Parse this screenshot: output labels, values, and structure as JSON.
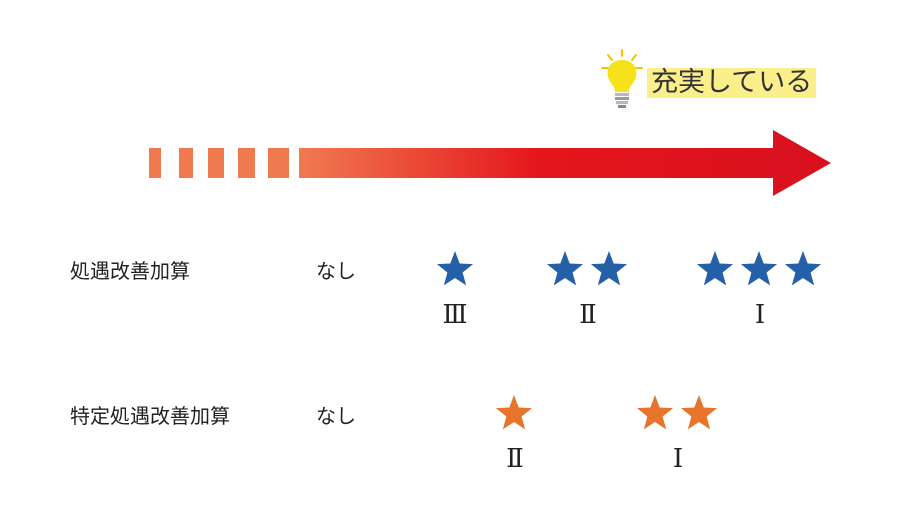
{
  "header": {
    "label": "充実している",
    "icon": "lightbulb-icon"
  },
  "colors": {
    "blue_star": "#2460a7",
    "orange_star": "#e8732a",
    "arrow_start": "#f07a50",
    "arrow_end": "#d8101e",
    "highlight": "#fbef8c"
  },
  "rows": [
    {
      "label": "処遇改善加算",
      "none_label": "なし",
      "levels": [
        {
          "stars": 1,
          "roman": "Ⅲ"
        },
        {
          "stars": 2,
          "roman": "Ⅱ"
        },
        {
          "stars": 3,
          "roman": "Ⅰ"
        }
      ]
    },
    {
      "label": "特定処遇改善加算",
      "none_label": "なし",
      "levels": [
        {
          "stars": 1,
          "roman": "Ⅱ"
        },
        {
          "stars": 2,
          "roman": "Ⅰ"
        }
      ]
    }
  ]
}
